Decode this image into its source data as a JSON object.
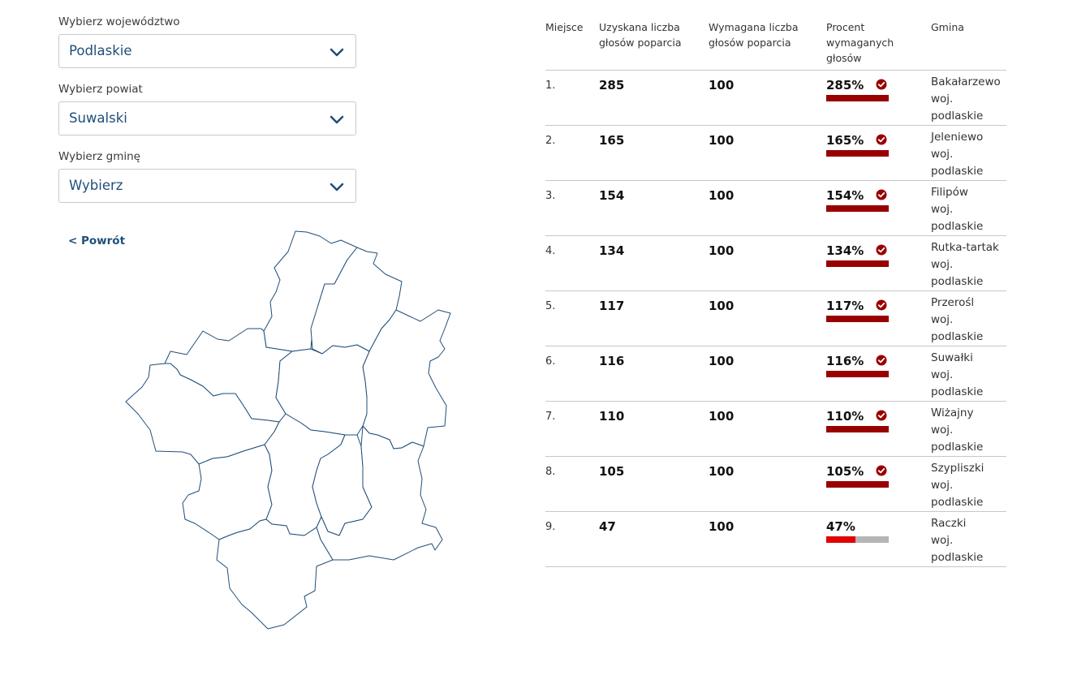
{
  "filters": [
    {
      "label": "Wybierz województwo",
      "value": "Podlaskie"
    },
    {
      "label": "Wybierz powiat",
      "value": "Suwalski"
    },
    {
      "label": "Wybierz gminę",
      "value": "Wybierz"
    }
  ],
  "back_link": "< Powrót",
  "table": {
    "headers": {
      "rank": "Miejsce",
      "obtained": "Uzyskana liczba głosów poparcia",
      "required": "Wymagana liczba głosów poparcia",
      "percent": "Procent wymaganych głosów",
      "gmina": "Gmina"
    },
    "rows": [
      {
        "rank": "1.",
        "obtained": "285",
        "required": "100",
        "percent_label": "285%",
        "percent": 285,
        "name": "Bakałarzewo",
        "voiv": "woj. podlaskie"
      },
      {
        "rank": "2.",
        "obtained": "165",
        "required": "100",
        "percent_label": "165%",
        "percent": 165,
        "name": "Jeleniewo",
        "voiv": "woj. podlaskie"
      },
      {
        "rank": "3.",
        "obtained": "154",
        "required": "100",
        "percent_label": "154%",
        "percent": 154,
        "name": "Filipów",
        "voiv": "woj. podlaskie"
      },
      {
        "rank": "4.",
        "obtained": "134",
        "required": "100",
        "percent_label": "134%",
        "percent": 134,
        "name": "Rutka-tartak",
        "voiv": "woj. podlaskie"
      },
      {
        "rank": "5.",
        "obtained": "117",
        "required": "100",
        "percent_label": "117%",
        "percent": 117,
        "name": "Przerośl",
        "voiv": "woj. podlaskie"
      },
      {
        "rank": "6.",
        "obtained": "116",
        "required": "100",
        "percent_label": "116%",
        "percent": 116,
        "name": "Suwałki",
        "voiv": "woj. podlaskie"
      },
      {
        "rank": "7.",
        "obtained": "110",
        "required": "100",
        "percent_label": "110%",
        "percent": 110,
        "name": "Wiżajny",
        "voiv": "woj. podlaskie"
      },
      {
        "rank": "8.",
        "obtained": "105",
        "required": "100",
        "percent_label": "105%",
        "percent": 105,
        "name": "Szypliszki",
        "voiv": "woj. podlaskie"
      },
      {
        "rank": "9.",
        "obtained": "47",
        "required": "100",
        "percent_label": "47%",
        "percent": 47,
        "name": "Raczki",
        "voiv": "woj. podlaskie"
      }
    ]
  },
  "colors": {
    "accent_blue": "#1f4e79",
    "bar_complete": "#990000",
    "bar_partial": "#e00000",
    "bar_track": "#b5b5b5"
  },
  "icons": {
    "dropdown": "chevron-down-icon",
    "complete": "check-circle-icon"
  }
}
